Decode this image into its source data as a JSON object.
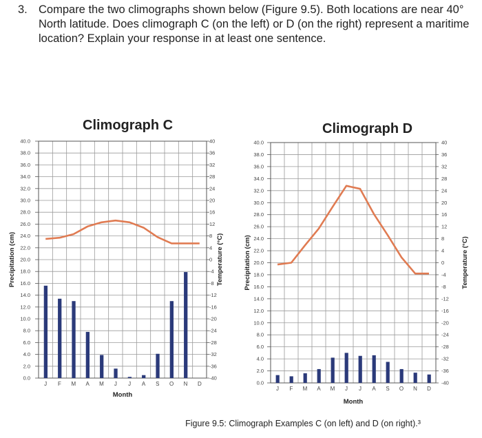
{
  "question": {
    "number": "3.",
    "text": "Compare the two climographs shown below (Figure 9.5). Both locations are near 40° North latitude. Does climograph C (on the left) or D (on the right) represent a maritime location? Explain your response in at least one sentence."
  },
  "caption": "Figure 9.5: Climograph Examples C (on left) and D (on right).³",
  "colors": {
    "bar": "#2b3a7a",
    "line": "#e07b52",
    "grid": "#9a9a9a",
    "text": "#222222"
  },
  "chart_data": [
    {
      "type": "bar+line",
      "title": "Climograph C",
      "xlabel": "Month",
      "ylabel_left": "Precipitation (cm)",
      "ylabel_right": "Temperature (°C)",
      "categories": [
        "J",
        "F",
        "M",
        "A",
        "M",
        "J",
        "J",
        "A",
        "S",
        "O",
        "N",
        "D"
      ],
      "left_ticks": [
        "0.0",
        "2.0",
        "4.0",
        "6.0",
        "8.0",
        "10.0",
        "12.0",
        "14.0",
        "16.0",
        "18.0",
        "20.0",
        "22.0",
        "24.0",
        "26.0",
        "28.0",
        "30.0",
        "32.0",
        "34.0",
        "36.0",
        "38.0",
        "40.0"
      ],
      "right_ticks": [
        "-40",
        "-36",
        "-32",
        "-28",
        "-24",
        "-20",
        "-16",
        "-12",
        "-8",
        "-4",
        "0",
        "4",
        "8",
        "12",
        "16",
        "20",
        "24",
        "28",
        "32",
        "36",
        "40"
      ],
      "ylim_left": [
        0,
        40
      ],
      "ylim_right": [
        -40,
        40
      ],
      "grid": true,
      "series": [
        {
          "name": "Precipitation (cm)",
          "kind": "bar",
          "axis": "left",
          "values": [
            15.6,
            13.4,
            13.0,
            7.8,
            3.9,
            1.6,
            0.2,
            0.5,
            4.1,
            13.0,
            17.9,
            0
          ]
        },
        {
          "name": "Temperature (°C)",
          "kind": "line",
          "axis": "right",
          "values": [
            7.0,
            7.4,
            8.6,
            11.2,
            12.6,
            13.2,
            12.6,
            10.8,
            7.6,
            5.5,
            5.5,
            5.5
          ]
        }
      ]
    },
    {
      "type": "bar+line",
      "title": "Climograph D",
      "xlabel": "Month",
      "ylabel_left": "Precipitation (cm)",
      "ylabel_right": "Temperature (°C)",
      "categories": [
        "J",
        "F",
        "M",
        "A",
        "M",
        "J",
        "J",
        "A",
        "S",
        "O",
        "N",
        "D"
      ],
      "left_ticks": [
        "0.0",
        "2.0",
        "4.0",
        "6.0",
        "8.0",
        "10.0",
        "12.0",
        "14.0",
        "16.0",
        "18.0",
        "20.0",
        "22.0",
        "24.0",
        "26.0",
        "28.0",
        "30.0",
        "32.0",
        "34.0",
        "36.0",
        "38.0",
        "40.0"
      ],
      "right_ticks": [
        "-40",
        "-36",
        "-32",
        "-28",
        "-24",
        "-20",
        "-16",
        "-12",
        "-8",
        "-4",
        "0",
        "4",
        "8",
        "12",
        "16",
        "20",
        "24",
        "28",
        "32",
        "36",
        "40"
      ],
      "ylim_left": [
        0,
        40
      ],
      "ylim_right": [
        -40,
        40
      ],
      "grid": true,
      "series": [
        {
          "name": "Precipitation (cm)",
          "kind": "bar",
          "axis": "left",
          "values": [
            1.3,
            1.1,
            1.6,
            2.3,
            4.2,
            5.0,
            4.5,
            4.6,
            3.5,
            2.3,
            1.7,
            1.4
          ]
        },
        {
          "name": "Temperature (°C)",
          "kind": "line",
          "axis": "right",
          "values": [
            -0.6,
            0.0,
            5.8,
            11.4,
            18.6,
            25.6,
            24.6,
            16.2,
            9.2,
            1.8,
            -3.6,
            -3.6
          ]
        }
      ]
    }
  ]
}
